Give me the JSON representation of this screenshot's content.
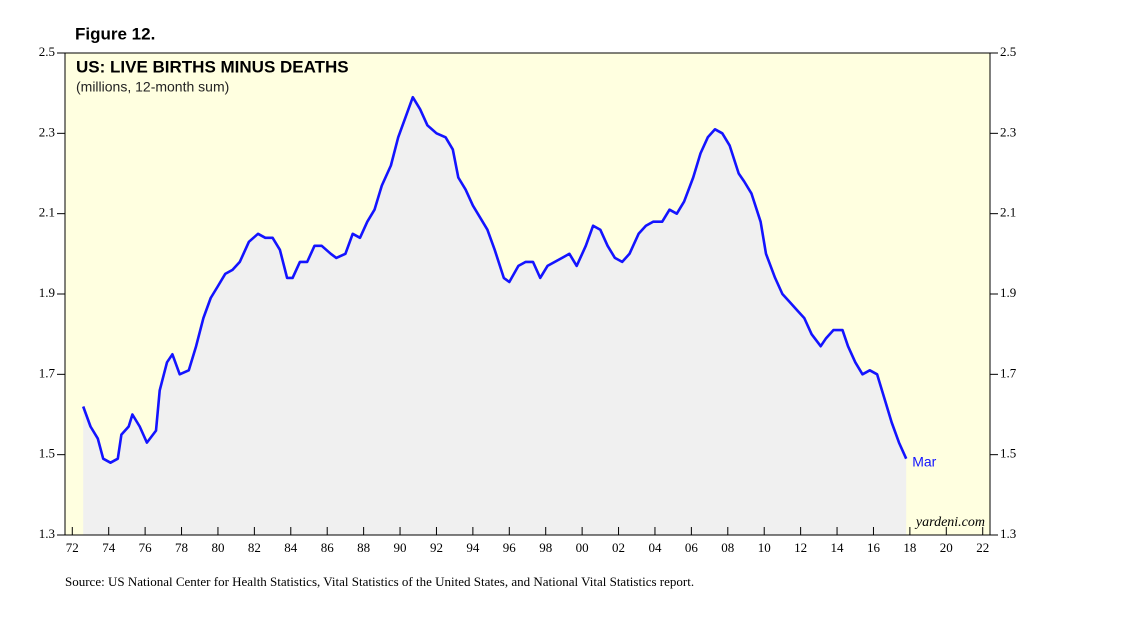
{
  "chart_data": {
    "type": "line",
    "figure_label": "Figure 12.",
    "title": "US: LIVE BIRTHS MINUS DEATHS",
    "subtitle": "(millions, 12-month sum)",
    "source": "Source: US National Center for Health Statistics, Vital Statistics of the United States, and National Vital Statistics report.",
    "watermark": "yardeni.com",
    "end_label": "Mar",
    "background": "#ffffe0",
    "area_color": "#f0f0f0",
    "x": [
      1972.6,
      1973.0,
      1973.4,
      1973.7,
      1974.1,
      1974.5,
      1974.7,
      1975.1,
      1975.3,
      1975.7,
      1976.1,
      1976.6,
      1976.8,
      1977.2,
      1977.5,
      1977.9,
      1978.4,
      1978.8,
      1979.2,
      1979.6,
      1980.0,
      1980.4,
      1980.8,
      1981.2,
      1981.7,
      1982.2,
      1982.6,
      1983.0,
      1983.4,
      1983.8,
      1984.1,
      1984.5,
      1984.9,
      1985.3,
      1985.7,
      1986.2,
      1986.5,
      1987.0,
      1987.4,
      1987.8,
      1988.2,
      1988.6,
      1989.0,
      1989.5,
      1989.9,
      1990.3,
      1990.7,
      1991.1,
      1991.5,
      1992.0,
      1992.5,
      1992.9,
      1993.2,
      1993.6,
      1994.0,
      1994.4,
      1994.8,
      1995.2,
      1995.7,
      1996.0,
      1996.5,
      1996.9,
      1997.3,
      1997.7,
      1998.1,
      1998.5,
      1998.9,
      1999.3,
      1999.7,
      2000.2,
      2000.6,
      2001.0,
      2001.4,
      2001.8,
      2002.2,
      2002.6,
      2003.1,
      2003.5,
      2003.9,
      2004.4,
      2004.8,
      2005.2,
      2005.6,
      2006.1,
      2006.5,
      2006.9,
      2007.3,
      2007.7,
      2008.1,
      2008.6,
      2008.9,
      2009.3,
      2009.8,
      2010.1,
      2010.6,
      2011.0,
      2011.4,
      2011.8,
      2012.2,
      2012.6,
      2013.1,
      2013.4,
      2013.8,
      2014.3,
      2014.6,
      2015.0,
      2015.4,
      2015.8,
      2016.2,
      2016.6,
      2017.0,
      2017.4,
      2017.8
    ],
    "series": [
      {
        "name": "US live births minus deaths",
        "color": "#1414ff",
        "values": [
          1.62,
          1.57,
          1.54,
          1.49,
          1.48,
          1.49,
          1.55,
          1.57,
          1.6,
          1.57,
          1.53,
          1.56,
          1.66,
          1.73,
          1.75,
          1.7,
          1.71,
          1.77,
          1.84,
          1.89,
          1.92,
          1.95,
          1.96,
          1.98,
          2.03,
          2.05,
          2.04,
          2.04,
          2.01,
          1.94,
          1.94,
          1.98,
          1.98,
          2.02,
          2.02,
          2.0,
          1.99,
          2.0,
          2.05,
          2.04,
          2.08,
          2.11,
          2.17,
          2.22,
          2.29,
          2.34,
          2.39,
          2.36,
          2.32,
          2.3,
          2.29,
          2.26,
          2.19,
          2.16,
          2.12,
          2.09,
          2.06,
          2.01,
          1.94,
          1.93,
          1.97,
          1.98,
          1.98,
          1.94,
          1.97,
          1.98,
          1.99,
          2.0,
          1.97,
          2.02,
          2.07,
          2.06,
          2.02,
          1.99,
          1.98,
          2.0,
          2.05,
          2.07,
          2.08,
          2.08,
          2.11,
          2.1,
          2.13,
          2.19,
          2.25,
          2.29,
          2.31,
          2.3,
          2.27,
          2.2,
          2.18,
          2.15,
          2.08,
          2.0,
          1.94,
          1.9,
          1.88,
          1.86,
          1.84,
          1.8,
          1.77,
          1.79,
          1.81,
          1.81,
          1.77,
          1.73,
          1.7,
          1.71,
          1.7,
          1.64,
          1.58,
          1.53,
          1.49
        ]
      }
    ],
    "xlim": [
      1971.6,
      2022.4
    ],
    "xticks": [
      {
        "value": 1972,
        "label": "72"
      },
      {
        "value": 1974,
        "label": "74"
      },
      {
        "value": 1976,
        "label": "76"
      },
      {
        "value": 1978,
        "label": "78"
      },
      {
        "value": 1980,
        "label": "80"
      },
      {
        "value": 1982,
        "label": "82"
      },
      {
        "value": 1984,
        "label": "84"
      },
      {
        "value": 1986,
        "label": "86"
      },
      {
        "value": 1988,
        "label": "88"
      },
      {
        "value": 1990,
        "label": "90"
      },
      {
        "value": 1992,
        "label": "92"
      },
      {
        "value": 1994,
        "label": "94"
      },
      {
        "value": 1996,
        "label": "96"
      },
      {
        "value": 1998,
        "label": "98"
      },
      {
        "value": 2000,
        "label": "00"
      },
      {
        "value": 2002,
        "label": "02"
      },
      {
        "value": 2004,
        "label": "04"
      },
      {
        "value": 2006,
        "label": "06"
      },
      {
        "value": 2008,
        "label": "08"
      },
      {
        "value": 2010,
        "label": "10"
      },
      {
        "value": 2012,
        "label": "12"
      },
      {
        "value": 2014,
        "label": "14"
      },
      {
        "value": 2016,
        "label": "16"
      },
      {
        "value": 2018,
        "label": "18"
      },
      {
        "value": 2020,
        "label": "20"
      },
      {
        "value": 2022,
        "label": "22"
      }
    ],
    "ylim": [
      1.3,
      2.5
    ],
    "yticks": [
      1.3,
      1.5,
      1.7,
      1.9,
      2.1,
      2.3,
      2.5
    ]
  }
}
